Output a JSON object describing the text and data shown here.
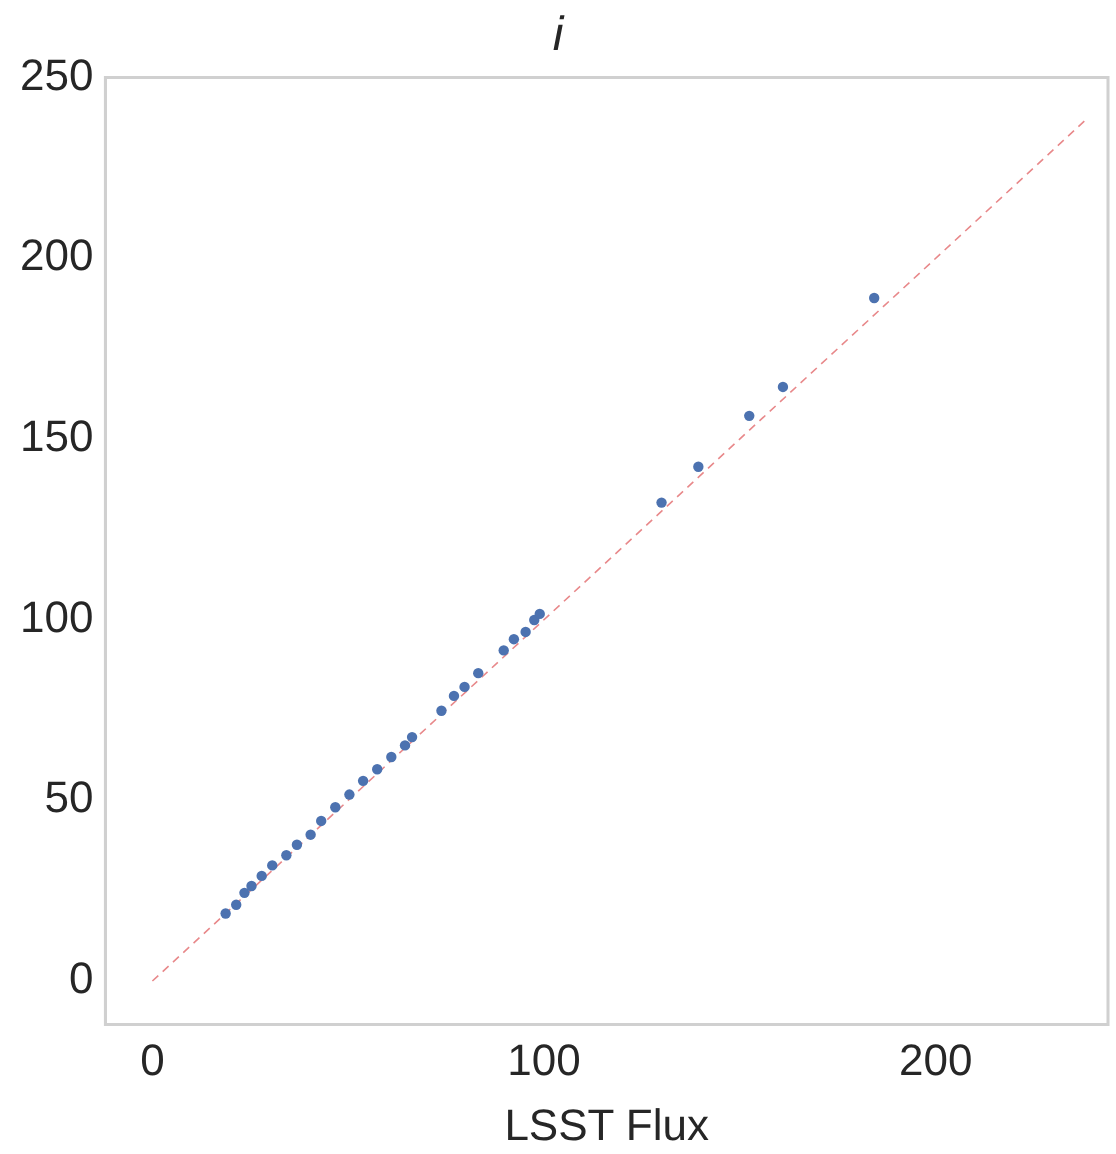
{
  "chart_data": {
    "type": "scatter",
    "title": "i",
    "xlabel": "LSST Flux",
    "xlim": [
      -12,
      244
    ],
    "ylim": [
      -12,
      250
    ],
    "xticks": [
      0,
      100,
      200
    ],
    "yticks": [
      0,
      50,
      100,
      150,
      200,
      250
    ],
    "grid": false,
    "legend": false,
    "marker": "circle",
    "series": [
      {
        "color": "#4c72b0",
        "x": [
          18.7,
          21.4,
          23.5,
          25.3,
          27.9,
          30.6,
          34.2,
          36.9,
          40.4,
          43.1,
          46.7,
          50.3,
          53.8,
          57.4,
          61,
          64.5,
          66.3,
          73.8,
          77,
          79.7,
          83.2,
          89.7,
          92.3,
          95.3,
          97.5,
          98.9,
          130,
          139.4,
          152.4,
          161,
          184.3
        ],
        "values": [
          18.7,
          21.1,
          24.4,
          26.3,
          29.1,
          32,
          34.8,
          37.7,
          40.5,
          44.3,
          48.1,
          51.6,
          55.4,
          58.6,
          62,
          65.2,
          67.5,
          74.8,
          78.9,
          81.4,
          85.2,
          91.5,
          94.6,
          96.6,
          99.9,
          101.6,
          132.4,
          142.3,
          156.4,
          164.4,
          189
        ]
      },
      {
        "type": "line",
        "color": "#e8888a",
        "line_style": "dashed",
        "marker": "none",
        "x": [
          0,
          238
        ],
        "values": [
          0,
          238
        ]
      }
    ]
  }
}
